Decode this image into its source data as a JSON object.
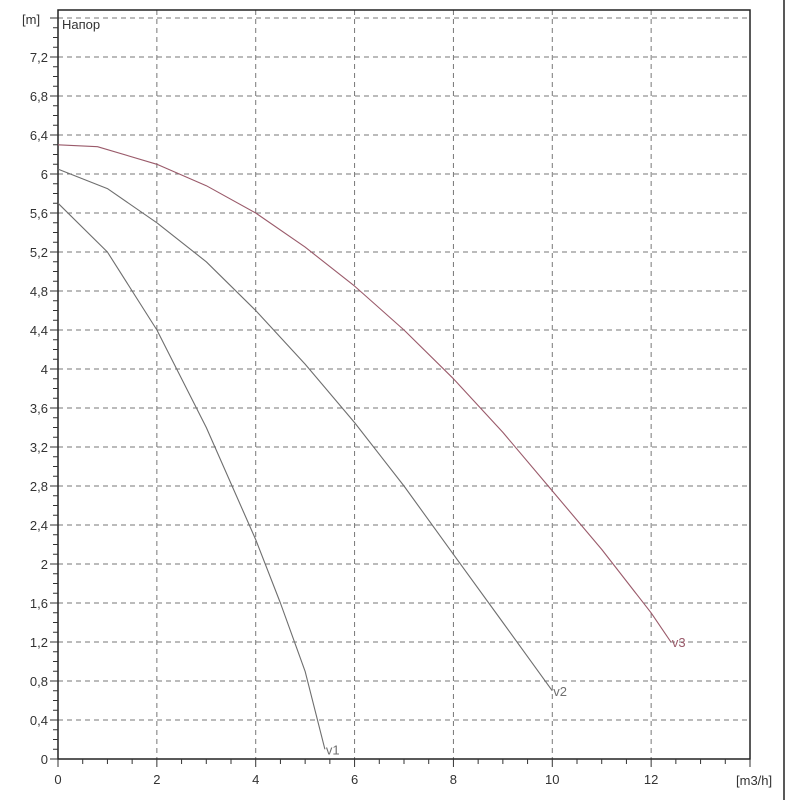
{
  "chart_data": {
    "type": "line",
    "title": "Напор",
    "xlabel": "[m3/h]",
    "ylabel": "[m]",
    "xlim": [
      0,
      14
    ],
    "ylim": [
      0,
      7.6
    ],
    "x_ticks": [
      "0",
      "2",
      "4",
      "6",
      "8",
      "10",
      "12"
    ],
    "y_ticks": [
      "0",
      "0,4",
      "0,8",
      "1,2",
      "1,6",
      "2",
      "2,4",
      "2,8",
      "3,2",
      "3,6",
      "4",
      "4,4",
      "4,8",
      "5,2",
      "5,6",
      "6",
      "6,4",
      "6,8",
      "7,2"
    ],
    "grid": true,
    "series": [
      {
        "name": "v1",
        "color": "#6e6e6e",
        "x": [
          0,
          1,
          2,
          3,
          4,
          4.5,
          5,
          5.4
        ],
        "y": [
          5.7,
          5.2,
          4.4,
          3.4,
          2.25,
          1.6,
          0.9,
          0.1
        ]
      },
      {
        "name": "v2",
        "color": "#6e6e6e",
        "x": [
          0,
          1,
          2,
          3,
          4,
          5,
          6,
          7,
          8,
          9,
          10
        ],
        "y": [
          6.05,
          5.85,
          5.5,
          5.1,
          4.6,
          4.05,
          3.45,
          2.8,
          2.1,
          1.4,
          0.7
        ]
      },
      {
        "name": "v3",
        "color": "#9a5a6a",
        "x": [
          0,
          0.8,
          2,
          3,
          4,
          5,
          6,
          7,
          8,
          9,
          10,
          11,
          12,
          12.4
        ],
        "y": [
          6.3,
          6.28,
          6.1,
          5.88,
          5.6,
          5.25,
          4.85,
          4.4,
          3.9,
          3.35,
          2.75,
          2.15,
          1.5,
          1.2
        ]
      }
    ]
  }
}
